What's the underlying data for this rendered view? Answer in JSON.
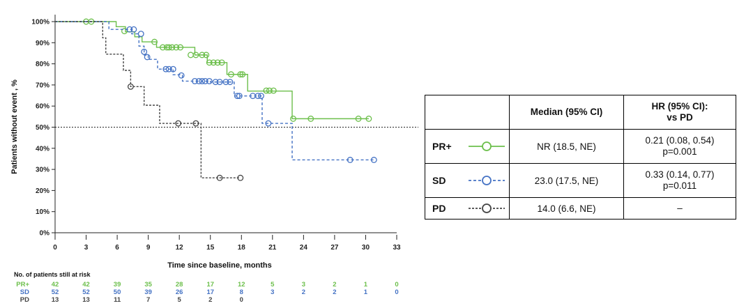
{
  "chart_data": {
    "type": "line",
    "subtype": "kaplan-meier",
    "xlabel": "Time since baseline, months",
    "ylabel": "Patients without event , %",
    "xlim": [
      0,
      33
    ],
    "ylim": [
      0,
      100
    ],
    "x_ticks": [
      0,
      3,
      6,
      9,
      12,
      15,
      18,
      21,
      24,
      27,
      30,
      33
    ],
    "y_ticks": [
      0,
      10,
      20,
      30,
      40,
      50,
      60,
      70,
      80,
      90,
      100
    ],
    "y_tick_labels": [
      "0%",
      "10%",
      "20%",
      "30%",
      "40%",
      "50%",
      "60%",
      "70%",
      "80%",
      "90%",
      "100%"
    ],
    "reference_line_y": 50,
    "series": [
      {
        "name": "PR+",
        "color": "#6cbf4b",
        "dash": "solid",
        "steps": [
          [
            0,
            100
          ],
          [
            5.9,
            97.6
          ],
          [
            6.8,
            95.2
          ],
          [
            7.7,
            92.8
          ],
          [
            8.4,
            90.4
          ],
          [
            9.8,
            87.8
          ],
          [
            13.5,
            84.2
          ],
          [
            14.7,
            80.6
          ],
          [
            16.6,
            75.0
          ],
          [
            18.6,
            67.1
          ],
          [
            22.9,
            54.0
          ],
          [
            30.3,
            54.0
          ]
        ],
        "censored": [
          [
            3.0,
            100
          ],
          [
            3.5,
            100
          ],
          [
            6.7,
            95.5
          ],
          [
            9.6,
            90.4
          ],
          [
            10.4,
            87.8
          ],
          [
            10.8,
            87.8
          ],
          [
            11.0,
            87.8
          ],
          [
            11.3,
            87.8
          ],
          [
            11.7,
            87.8
          ],
          [
            12.1,
            87.8
          ],
          [
            13.1,
            84.2
          ],
          [
            13.6,
            84.2
          ],
          [
            14.2,
            84.2
          ],
          [
            14.6,
            84.2
          ],
          [
            14.9,
            80.6
          ],
          [
            15.3,
            80.6
          ],
          [
            15.7,
            80.6
          ],
          [
            16.1,
            80.6
          ],
          [
            17.0,
            75.0
          ],
          [
            17.9,
            75.0
          ],
          [
            18.1,
            75.0
          ],
          [
            20.4,
            67.3
          ],
          [
            20.7,
            67.3
          ],
          [
            21.1,
            67.3
          ],
          [
            23.0,
            54.0
          ],
          [
            24.7,
            54.0
          ],
          [
            29.3,
            54.0
          ],
          [
            30.3,
            54.0
          ]
        ]
      },
      {
        "name": "SD",
        "color": "#4472c4",
        "dash": "4,3",
        "steps": [
          [
            0,
            100
          ],
          [
            5.2,
            96.3
          ],
          [
            7.4,
            94.2
          ],
          [
            8.1,
            88.4
          ],
          [
            8.6,
            84.2
          ],
          [
            9.0,
            82.1
          ],
          [
            9.9,
            77.5
          ],
          [
            11.4,
            74.8
          ],
          [
            12.3,
            71.8
          ],
          [
            15.0,
            71.4
          ],
          [
            17.3,
            64.8
          ],
          [
            19.4,
            64.8
          ],
          [
            20.0,
            51.8
          ],
          [
            22.9,
            34.5
          ],
          [
            30.8,
            34.5
          ]
        ],
        "censored": [
          [
            7.2,
            96.3
          ],
          [
            7.6,
            96.3
          ],
          [
            8.3,
            94.2
          ],
          [
            8.6,
            85.7
          ],
          [
            8.9,
            83.2
          ],
          [
            10.7,
            77.5
          ],
          [
            11.0,
            77.5
          ],
          [
            11.4,
            77.5
          ],
          [
            12.2,
            74.5
          ],
          [
            13.5,
            71.8
          ],
          [
            13.9,
            71.8
          ],
          [
            14.2,
            71.8
          ],
          [
            14.5,
            71.8
          ],
          [
            14.9,
            71.8
          ],
          [
            15.5,
            71.4
          ],
          [
            15.9,
            71.4
          ],
          [
            16.5,
            71.4
          ],
          [
            16.9,
            71.4
          ],
          [
            17.6,
            64.8
          ],
          [
            17.8,
            64.8
          ],
          [
            19.1,
            64.8
          ],
          [
            19.6,
            64.8
          ],
          [
            19.9,
            64.8
          ],
          [
            20.6,
            51.8
          ],
          [
            28.5,
            34.5
          ],
          [
            30.8,
            34.5
          ]
        ]
      },
      {
        "name": "PD",
        "color": "#444444",
        "dash": "3,2",
        "steps": [
          [
            0,
            100
          ],
          [
            4.6,
            92.3
          ],
          [
            4.9,
            84.6
          ],
          [
            6.6,
            76.9
          ],
          [
            7.3,
            69.2
          ],
          [
            8.6,
            60.4
          ],
          [
            10.1,
            51.8
          ],
          [
            12.9,
            51.8
          ],
          [
            14.1,
            26.0
          ],
          [
            17.9,
            26.0
          ]
        ],
        "censored": [
          [
            7.3,
            69.2
          ],
          [
            11.9,
            51.8
          ],
          [
            13.6,
            51.8
          ],
          [
            15.9,
            26.0
          ],
          [
            17.9,
            26.0
          ]
        ]
      }
    ],
    "legend_table": {
      "headers": [
        "",
        "Median (95% CI)",
        "HR (95% CI):\nvs PD"
      ],
      "rows": [
        {
          "group": "PR+",
          "median": "NR (18.5, NE)",
          "hr_line1": "0.21 (0.08, 0.54)",
          "hr_line2": "p=0.001"
        },
        {
          "group": "SD",
          "median": "23.0 (17.5, NE)",
          "hr_line1": "0.33 (0.14, 0.77)",
          "hr_line2": "p=0.011"
        },
        {
          "group": "PD",
          "median": "14.0 (6.6, NE)",
          "hr_line1": "–",
          "hr_line2": ""
        }
      ]
    },
    "risk_table": {
      "title": "No. of patients still at risk",
      "time_points": [
        0,
        3,
        6,
        9,
        12,
        15,
        18,
        21,
        24,
        27,
        30,
        33
      ],
      "rows": [
        {
          "label": "PR+",
          "color": "#6cbf4b",
          "values": [
            "42",
            "42",
            "39",
            "35",
            "28",
            "17",
            "12",
            "5",
            "3",
            "2",
            "1",
            "0"
          ]
        },
        {
          "label": "SD",
          "color": "#4472c4",
          "values": [
            "52",
            "52",
            "50",
            "39",
            "26",
            "17",
            "8",
            "3",
            "2",
            "2",
            "1",
            "0"
          ]
        },
        {
          "label": "PD",
          "color": "#444444",
          "values": [
            "13",
            "13",
            "11",
            "7",
            "5",
            "2",
            "0"
          ]
        }
      ]
    }
  }
}
